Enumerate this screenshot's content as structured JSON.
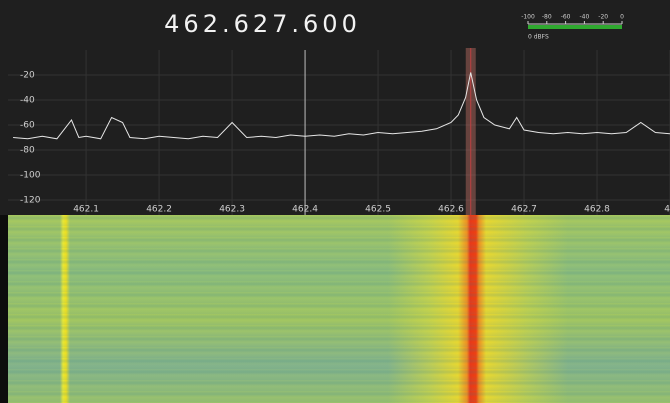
{
  "frequency_display": "462.627.600",
  "level_meter": {
    "ticks": [
      -100,
      -80,
      -60,
      -40,
      -20,
      0
    ],
    "unit_label": "0 dBFS",
    "color": "#2fa82f"
  },
  "chart_data": {
    "type": "line",
    "xlim": [
      461.993,
      462.9
    ],
    "ylim": [
      -132,
      0
    ],
    "xticks": [
      462.1,
      462.2,
      462.3,
      462.4,
      462.5,
      462.6,
      462.7,
      462.8,
      {
        "value": 462.9,
        "label": "46"
      }
    ],
    "yticks": [
      -20,
      -40,
      -60,
      -80,
      -100,
      -120
    ],
    "grid": true,
    "color": "#e6e6e6",
    "x": [
      462.0,
      462.02,
      462.04,
      462.06,
      462.08,
      462.09,
      462.1,
      462.12,
      462.135,
      462.15,
      462.16,
      462.18,
      462.2,
      462.22,
      462.24,
      462.26,
      462.28,
      462.3,
      462.32,
      462.34,
      462.36,
      462.38,
      462.4,
      462.42,
      462.44,
      462.46,
      462.48,
      462.5,
      462.52,
      462.54,
      462.56,
      462.58,
      462.6,
      462.61,
      462.62,
      462.627,
      462.635,
      462.645,
      462.66,
      462.68,
      462.69,
      462.7,
      462.72,
      462.74,
      462.76,
      462.78,
      462.8,
      462.82,
      462.84,
      462.86,
      462.88,
      462.9
    ],
    "values": [
      -70,
      -71,
      -69,
      -71,
      -56,
      -70,
      -69,
      -71,
      -54,
      -58,
      -70,
      -71,
      -69,
      -70,
      -71,
      -69,
      -70,
      -58,
      -70,
      -69,
      -70,
      -68,
      -69,
      -68,
      -69,
      -67,
      -68,
      -66,
      -67,
      -66,
      -65,
      -63,
      -58,
      -52,
      -38,
      -18,
      -40,
      -54,
      -60,
      -63,
      -54,
      -64,
      -66,
      -67,
      -66,
      -67,
      -66,
      -67,
      -66,
      -58,
      -66,
      -67
    ]
  }
}
